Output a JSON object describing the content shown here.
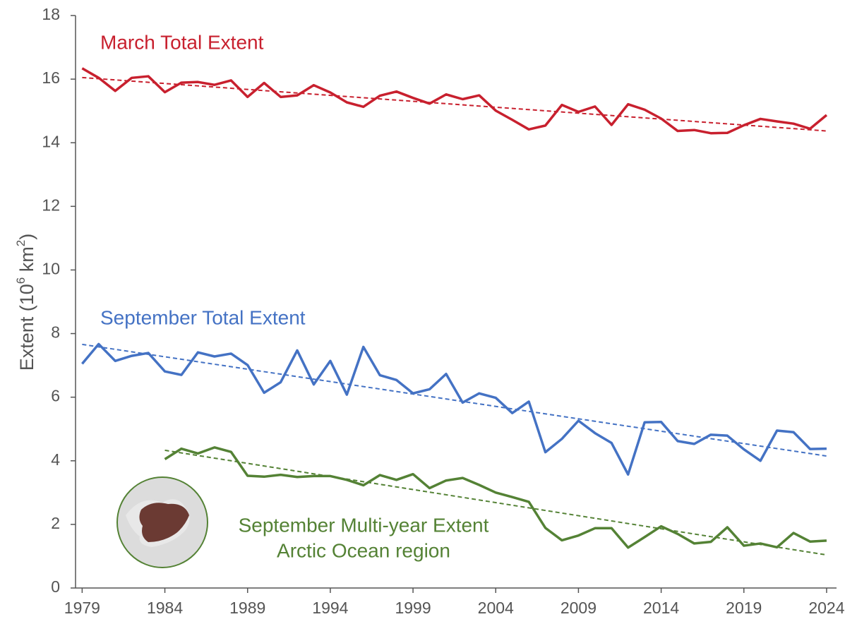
{
  "chart_data": {
    "type": "line",
    "ylabel": {
      "text": "Extent (10",
      "sup1": "6",
      "mid": " km",
      "sup2": "2",
      "end": ")"
    },
    "x": [
      1979,
      1980,
      1981,
      1982,
      1983,
      1984,
      1985,
      1986,
      1987,
      1988,
      1989,
      1990,
      1991,
      1992,
      1993,
      1994,
      1995,
      1996,
      1997,
      1998,
      1999,
      2000,
      2001,
      2002,
      2003,
      2004,
      2005,
      2006,
      2007,
      2008,
      2009,
      2010,
      2011,
      2012,
      2013,
      2014,
      2015,
      2016,
      2017,
      2018,
      2019,
      2020,
      2021,
      2022,
      2023,
      2024
    ],
    "xlim": [
      1978.6,
      2024.6
    ],
    "xticks": [
      1979,
      1984,
      1989,
      1994,
      1999,
      2004,
      2009,
      2014,
      2019,
      2024
    ],
    "ylim": [
      0,
      18
    ],
    "yticks": [
      0,
      2,
      4,
      6,
      8,
      10,
      12,
      14,
      16,
      18
    ],
    "series": [
      {
        "name": "March Total Extent",
        "color": "#c8202e",
        "values": [
          16.34,
          16.04,
          15.63,
          16.04,
          16.09,
          15.59,
          15.89,
          15.91,
          15.82,
          15.96,
          15.44,
          15.88,
          15.44,
          15.49,
          15.81,
          15.58,
          15.27,
          15.13,
          15.48,
          15.61,
          15.41,
          15.23,
          15.52,
          15.37,
          15.49,
          15.01,
          14.72,
          14.42,
          14.54,
          15.19,
          14.97,
          15.14,
          14.56,
          15.21,
          15.04,
          14.76,
          14.37,
          14.4,
          14.3,
          14.31,
          14.55,
          14.75,
          14.67,
          14.6,
          14.44,
          14.87
        ],
        "trend_x": [
          1979,
          2024
        ],
        "trend": [
          16.05,
          14.37
        ]
      },
      {
        "name": "September Total Extent",
        "color": "#4472c4",
        "values": [
          7.05,
          7.67,
          7.14,
          7.3,
          7.39,
          6.81,
          6.7,
          7.41,
          7.28,
          7.37,
          7.01,
          6.14,
          6.47,
          7.47,
          6.4,
          7.14,
          6.08,
          7.58,
          6.69,
          6.54,
          6.12,
          6.25,
          6.73,
          5.83,
          6.12,
          5.98,
          5.5,
          5.86,
          4.27,
          4.69,
          5.26,
          4.87,
          4.56,
          3.57,
          5.21,
          5.22,
          4.62,
          4.53,
          4.82,
          4.79,
          4.36,
          4.0,
          4.95,
          4.9,
          4.37,
          4.38
        ],
        "trend_x": [
          1979,
          2024
        ],
        "trend": [
          7.66,
          4.15
        ]
      },
      {
        "name": "September Multi-year Extent",
        "subname": "Arctic Ocean region",
        "color": "#548235",
        "values": [
          null,
          null,
          null,
          null,
          null,
          4.05,
          4.38,
          4.23,
          4.42,
          4.28,
          3.53,
          3.5,
          3.56,
          3.49,
          3.52,
          3.52,
          3.4,
          3.23,
          3.55,
          3.4,
          3.58,
          3.14,
          3.38,
          3.46,
          3.24,
          3.0,
          2.86,
          2.71,
          1.89,
          1.5,
          1.65,
          1.88,
          1.88,
          1.27,
          1.6,
          1.94,
          1.7,
          1.4,
          1.45,
          1.91,
          1.33,
          1.4,
          1.28,
          1.73,
          1.46,
          1.49
        ],
        "trend_x": [
          1984,
          2024
        ],
        "trend": [
          4.33,
          1.04
        ]
      }
    ]
  }
}
